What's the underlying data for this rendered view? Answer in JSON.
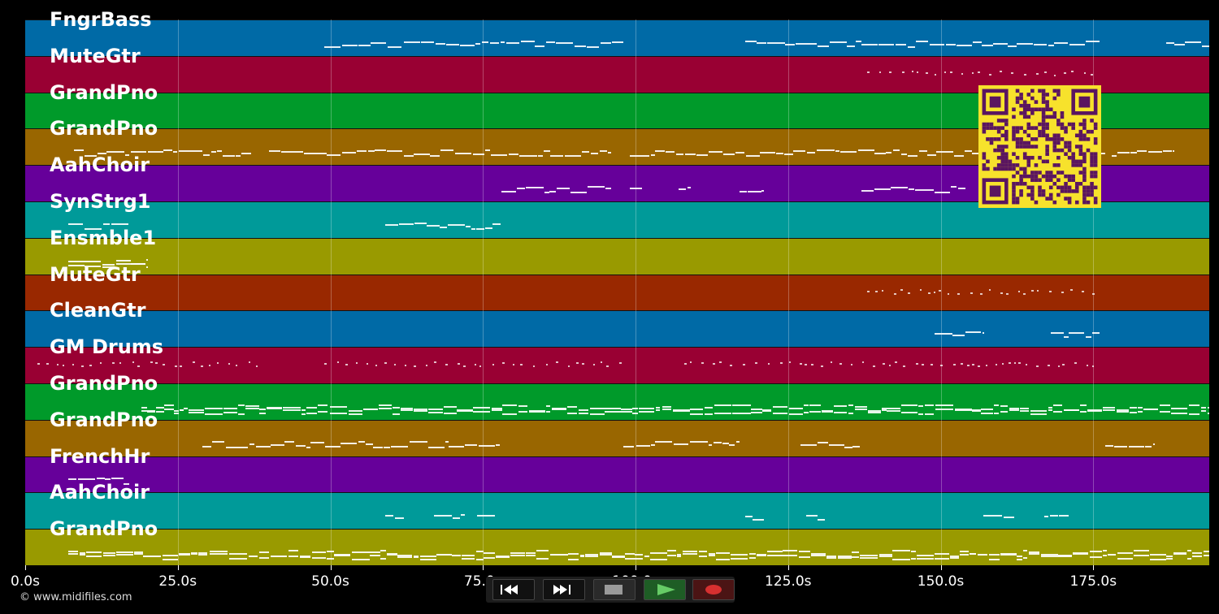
{
  "tracks": [
    {
      "name": "FngrBass",
      "color": "#006aa6"
    },
    {
      "name": "MuteGtr",
      "color": "#990033"
    },
    {
      "name": "GrandPno",
      "color": "#009a2a"
    },
    {
      "name": "GrandPno",
      "color": "#996600"
    },
    {
      "name": "AahChoir",
      "color": "#66009a"
    },
    {
      "name": "SynStrg1",
      "color": "#009a99"
    },
    {
      "name": "Ensmble1",
      "color": "#999a00"
    },
    {
      "name": "MuteGtr",
      "color": "#992800"
    },
    {
      "name": "CleanGtr",
      "color": "#006aa6"
    },
    {
      "name": "GM Drums",
      "color": "#990033"
    },
    {
      "name": "GrandPno",
      "color": "#009a2a"
    },
    {
      "name": "GrandPno",
      "color": "#996600"
    },
    {
      "name": "FrenchHr",
      "color": "#66009a"
    },
    {
      "name": "AahChoir",
      "color": "#009a99"
    },
    {
      "name": "GrandPno",
      "color": "#999a00"
    }
  ],
  "time_axis": {
    "ticks": [
      "0.0s",
      "25.0s",
      "50.0s",
      "75.0s",
      "100.0s",
      "125.0s",
      "150.0s",
      "175.0s"
    ]
  },
  "copyright": "© www.midifiles.com",
  "transport": {
    "buttons": [
      {
        "name": "rewind-button",
        "icon": "rewind-icon"
      },
      {
        "name": "fast-forward-button",
        "icon": "fast-forward-icon"
      },
      {
        "name": "stop-button",
        "icon": "stop-icon"
      },
      {
        "name": "play-button",
        "icon": "play-icon"
      },
      {
        "name": "record-button",
        "icon": "record-icon"
      }
    ]
  },
  "colors": {
    "qr_background": "#f7e22c",
    "qr_foreground": "#5a1560",
    "play": "#2e7d32",
    "record": "#7a1a1a"
  }
}
